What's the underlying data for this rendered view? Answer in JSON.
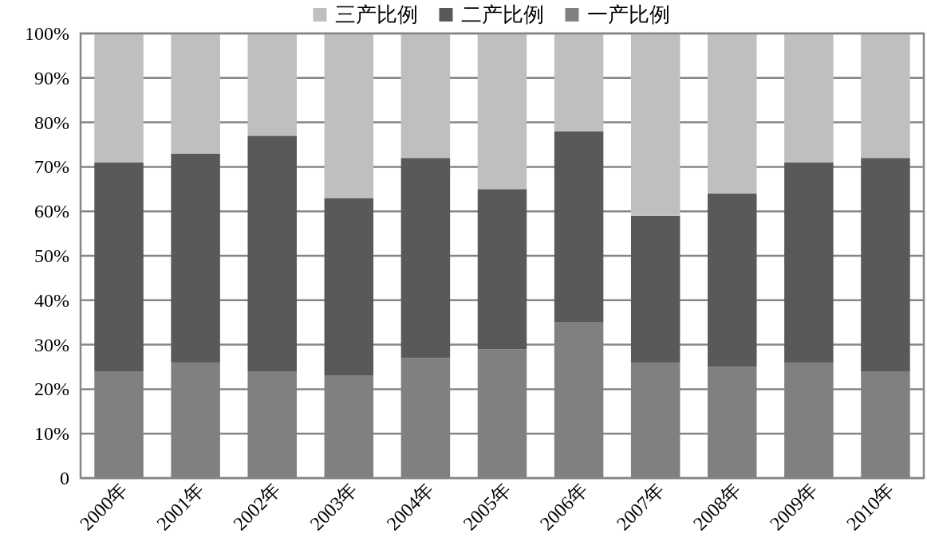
{
  "chart_data": {
    "type": "bar",
    "stacked": true,
    "categories": [
      "2000年",
      "2001年",
      "2002年",
      "2003年",
      "2004年",
      "2005年",
      "2006年",
      "2007年",
      "2008年",
      "2009年",
      "2010年"
    ],
    "series": [
      {
        "name": "一产比例",
        "color": "#808080",
        "values": [
          24,
          26,
          24,
          23,
          27,
          29,
          35,
          26,
          25,
          26,
          24
        ]
      },
      {
        "name": "二产比例",
        "color": "#595959",
        "values": [
          47,
          47,
          53,
          40,
          45,
          36,
          43,
          33,
          39,
          45,
          48
        ]
      },
      {
        "name": "三产比例",
        "color": "#bfbfbf",
        "values": [
          29,
          27,
          23,
          37,
          28,
          35,
          22,
          41,
          36,
          29,
          28
        ]
      }
    ],
    "ylim": [
      0,
      100
    ],
    "yticks": [
      0,
      {
        "value": 10,
        "label": "10%"
      },
      {
        "value": 20,
        "label": "20%"
      },
      {
        "value": 30,
        "label": "30%"
      },
      {
        "value": 40,
        "label": "40%"
      },
      {
        "value": 50,
        "label": "50%"
      },
      {
        "value": 60,
        "label": "60%"
      },
      {
        "value": 70,
        "label": "70%"
      },
      {
        "value": 80,
        "label": "80%"
      },
      {
        "value": 90,
        "label": "90%"
      },
      {
        "value": 100,
        "label": "100%"
      }
    ],
    "grid": "y",
    "legend": "top"
  }
}
